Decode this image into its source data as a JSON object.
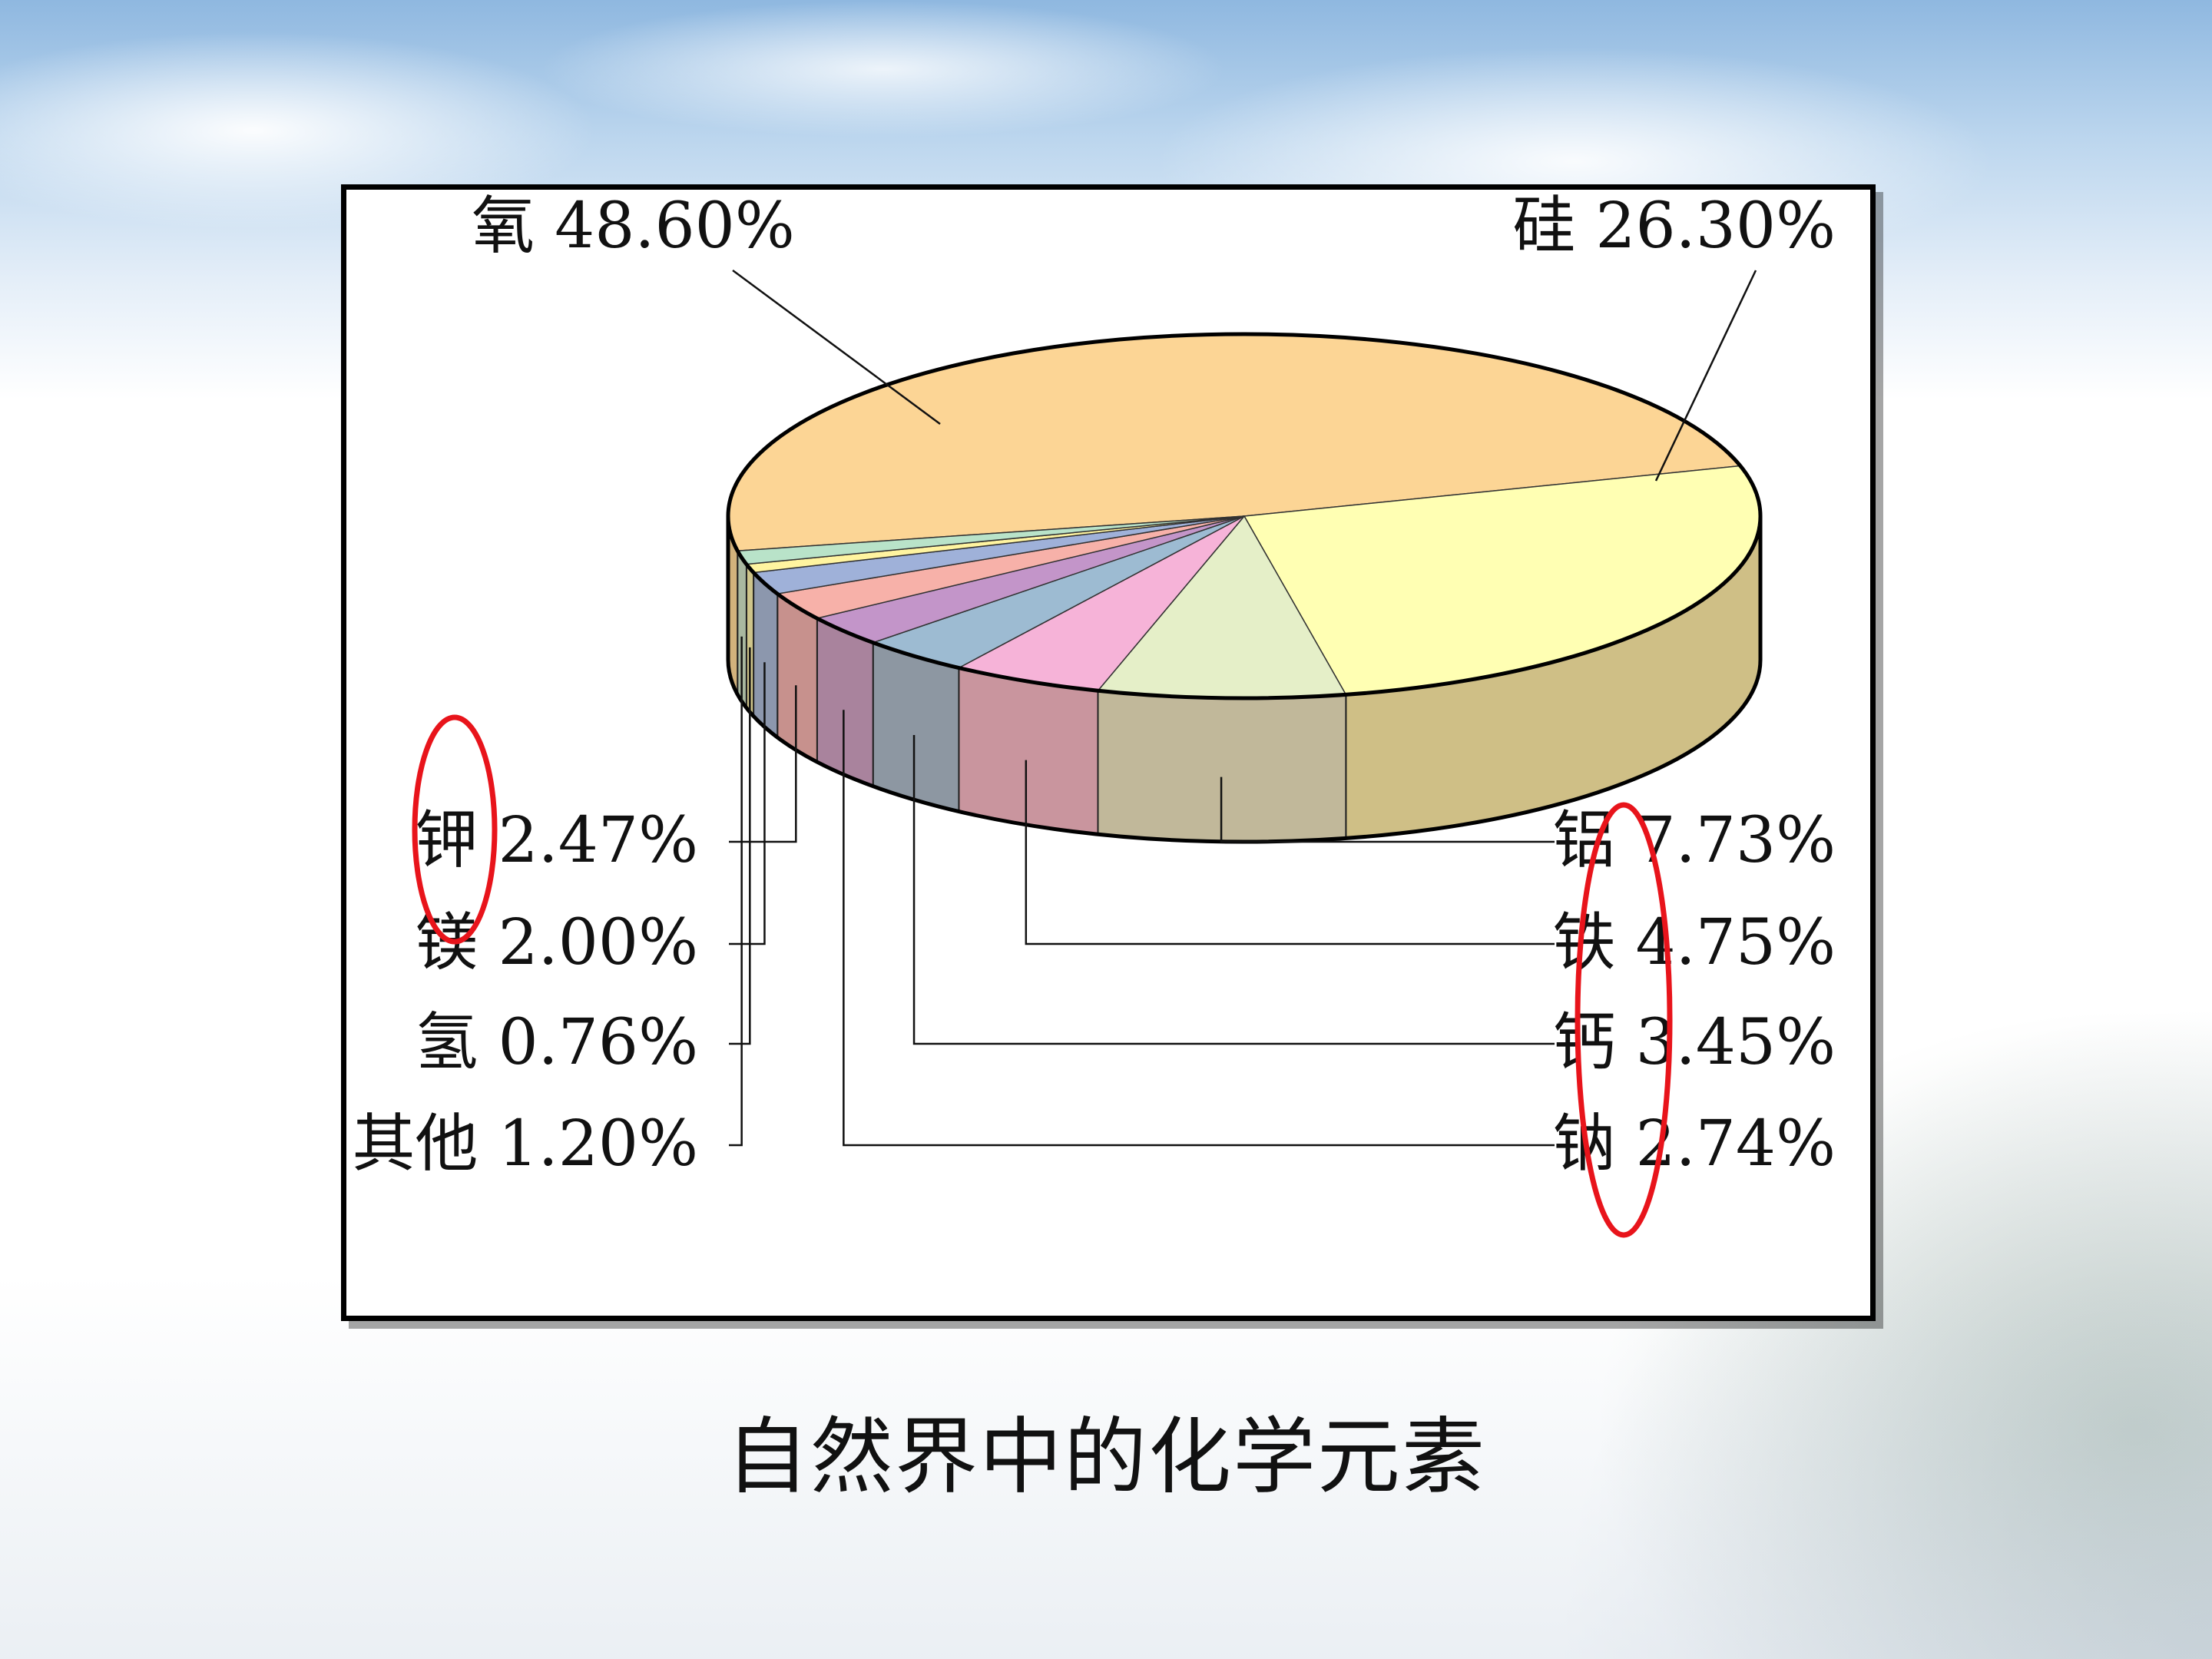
{
  "caption": "自然界中的化学元素",
  "chart_data": {
    "type": "pie",
    "title": "",
    "unit": "%",
    "series": [
      {
        "label": "氧",
        "value": 48.6,
        "value_text": "48.60%",
        "color": "#fcd595",
        "side_color": "#d2b27c"
      },
      {
        "label": "硅",
        "value": 26.3,
        "value_text": "26.30%",
        "color": "#ffffb3",
        "side_color": "#cfbf86"
      },
      {
        "label": "铝",
        "value": 7.73,
        "value_text": "7.73%",
        "color": "#e5efc8",
        "side_color": "#c1b89a"
      },
      {
        "label": "铁",
        "value": 4.75,
        "value_text": "4.75%",
        "color": "#f6b3d8",
        "side_color": "#c9959e"
      },
      {
        "label": "钙",
        "value": 3.45,
        "value_text": "3.45%",
        "color": "#9dbbd2",
        "side_color": "#8d97a2"
      },
      {
        "label": "钠",
        "value": 2.74,
        "value_text": "2.74%",
        "color": "#c395c9",
        "side_color": "#a9839d"
      },
      {
        "label": "钾",
        "value": 2.47,
        "value_text": "2.47%",
        "color": "#f7b1a9",
        "side_color": "#c7918d"
      },
      {
        "label": "镁",
        "value": 2.0,
        "value_text": "2.00%",
        "color": "#9fb1d9",
        "side_color": "#8c97ad"
      },
      {
        "label": "氢",
        "value": 0.76,
        "value_text": "0.76%",
        "color": "#fff4a0",
        "side_color": "#cfc58a"
      },
      {
        "label": "其他",
        "value": 1.2,
        "value_text": "1.20%",
        "color": "#b9e3c9",
        "side_color": "#a9b8a0"
      }
    ],
    "highlighted": [
      "钾",
      "镁",
      "铝",
      "铁",
      "钙",
      "钠"
    ],
    "highlight_color": "#e8141b"
  }
}
